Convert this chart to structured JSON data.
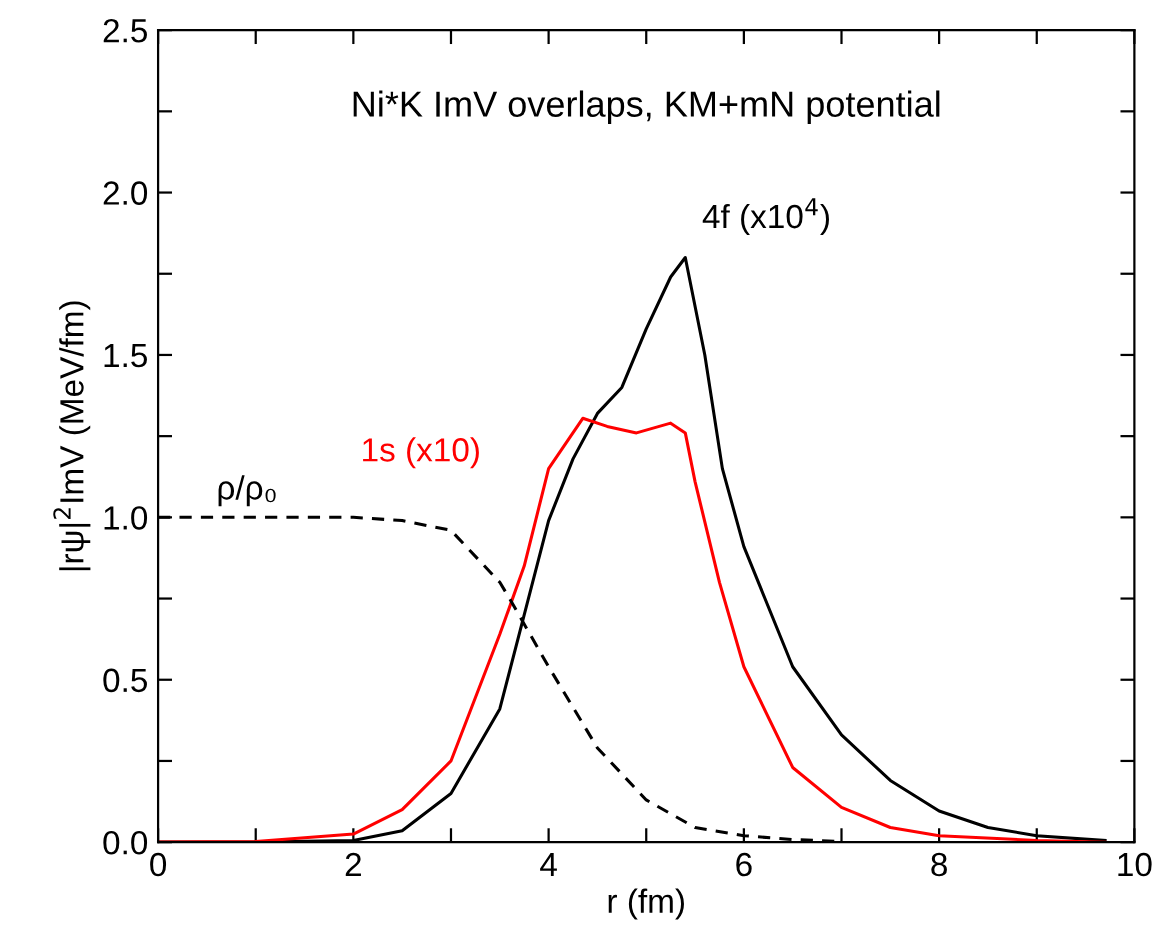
{
  "chart_data": {
    "type": "line",
    "title": "Ni*K ImV overlaps, KM+mN potential",
    "xlabel": "r (fm)",
    "ylabel": "|rψ|$^{2}$ImV (MeV/fm)",
    "xlim": [
      0,
      10
    ],
    "ylim": [
      0,
      2.5
    ],
    "xticks": [
      0,
      {
        "value": 1,
        "label": null
      },
      2,
      {
        "value": 3,
        "label": null
      },
      4,
      {
        "value": 5,
        "label": null
      },
      6,
      {
        "value": 7,
        "label": null
      },
      8,
      {
        "value": 9,
        "label": null
      },
      10
    ],
    "yticks": [
      {
        "value": 0,
        "label": "0.0"
      },
      {
        "value": 0.25,
        "label": null
      },
      0.5,
      {
        "value": 0.75,
        "label": null
      },
      {
        "value": 1,
        "label": "1.0"
      },
      {
        "value": 1.25,
        "label": null
      },
      1.5,
      {
        "value": 1.75,
        "label": null
      },
      {
        "value": 2,
        "label": "2.0"
      },
      {
        "value": 2.25,
        "label": null
      },
      2.5
    ],
    "grid": false,
    "legend": false,
    "marker": "none",
    "series": [
      {
        "name": "4f (x10$^{4}$)",
        "color": "#000000",
        "line_style": "solid",
        "x": [
          0,
          1,
          2,
          2.5,
          3,
          3.5,
          3.75,
          4,
          4.25,
          4.5,
          4.75,
          5,
          5.25,
          5.4,
          5.6,
          5.78,
          6,
          6.5,
          7,
          7.5,
          8,
          8.5,
          9,
          9.7
        ],
        "values": [
          0,
          0,
          0.005,
          0.035,
          0.15,
          0.41,
          0.7,
          0.99,
          1.18,
          1.32,
          1.4,
          1.58,
          1.74,
          1.8,
          1.5,
          1.15,
          0.91,
          0.54,
          0.33,
          0.19,
          0.096,
          0.045,
          0.02,
          0.005
        ]
      },
      {
        "name": "1s (x10)",
        "color": "#ff0000",
        "line_style": "solid",
        "x": [
          0,
          1,
          2,
          2.5,
          3,
          3.5,
          3.75,
          4,
          4.35,
          4.6,
          4.9,
          5.25,
          5.4,
          5.5,
          5.75,
          6,
          6.5,
          7,
          7.5,
          8,
          9,
          9.7
        ],
        "values": [
          0,
          0.002,
          0.025,
          0.1,
          0.25,
          0.64,
          0.85,
          1.15,
          1.305,
          1.28,
          1.26,
          1.29,
          1.26,
          1.11,
          0.8,
          0.54,
          0.23,
          0.107,
          0.045,
          0.02,
          0.005,
          0
        ]
      },
      {
        "name": "ρ/ρ₀",
        "color": "#000000",
        "line_style": "dashed",
        "x": [
          0,
          1,
          2,
          2.5,
          3,
          3.5,
          3.6,
          4,
          4.5,
          5,
          5.5,
          6,
          6.5,
          7
        ],
        "values": [
          1,
          1,
          1,
          0.99,
          0.96,
          0.8,
          0.75,
          0.54,
          0.29,
          0.13,
          0.045,
          0.02,
          0.008,
          0.002
        ]
      }
    ]
  }
}
